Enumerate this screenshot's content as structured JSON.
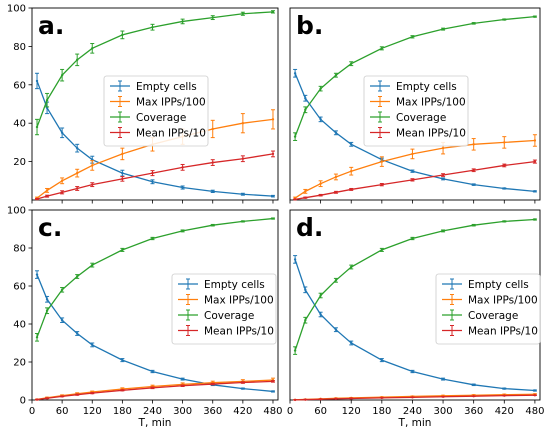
{
  "chart_data": [
    {
      "type": "line",
      "panel": "a.",
      "xlabel": "",
      "ylabel": "",
      "xlim": [
        0,
        490
      ],
      "ylim": [
        0,
        100
      ],
      "xticks": [
        0,
        60,
        120,
        180,
        240,
        300,
        360,
        420,
        480
      ],
      "xtick_labels": [
        "",
        "",
        "",
        "",
        "",
        "",
        "",
        "",
        ""
      ],
      "yticks": [
        20,
        40,
        60,
        80,
        100
      ],
      "legend": "center-right",
      "x": [
        10,
        30,
        60,
        90,
        120,
        180,
        240,
        300,
        360,
        420,
        480
      ],
      "series": [
        {
          "name": "Empty cells",
          "color": "#1f77b4",
          "values": [
            62,
            48,
            35,
            27,
            21,
            14,
            9.5,
            6.5,
            4.5,
            3,
            2
          ],
          "errors": [
            4,
            3,
            2.5,
            2,
            1.8,
            1.5,
            1,
            0.8,
            0.6,
            0.5,
            0.4
          ]
        },
        {
          "name": "Max IPPs/100",
          "color": "#ff7f0e",
          "values": [
            1,
            5,
            10,
            14,
            18,
            24,
            29,
            33,
            37,
            40,
            42
          ],
          "errors": [
            0.5,
            1,
            1.5,
            2,
            2.5,
            3,
            3.5,
            4,
            4.5,
            5,
            5
          ]
        },
        {
          "name": "Coverage",
          "color": "#2ca02c",
          "values": [
            38,
            52,
            65,
            73,
            79,
            86,
            90,
            93,
            95,
            97,
            98
          ],
          "errors": [
            4,
            3.5,
            3,
            3,
            2.5,
            2,
            1.5,
            1.2,
            1,
            0.8,
            0.6
          ]
        },
        {
          "name": "Mean IPPs/10",
          "color": "#d62728",
          "values": [
            0.5,
            2,
            4,
            6,
            8,
            11,
            14,
            17,
            19.5,
            21.5,
            24
          ],
          "errors": [
            0.3,
            0.5,
            0.8,
            1,
            1,
            1.2,
            1.3,
            1.5,
            1.5,
            1.5,
            1.5
          ]
        }
      ]
    },
    {
      "type": "line",
      "panel": "b.",
      "xlabel": "",
      "ylabel": "",
      "xlim": [
        0,
        490
      ],
      "ylim": [
        0,
        100
      ],
      "xticks": [
        0,
        60,
        120,
        180,
        240,
        300,
        360,
        420,
        480
      ],
      "xtick_labels": [
        "",
        "",
        "",
        "",
        "",
        "",
        "",
        "",
        ""
      ],
      "yticks": [],
      "legend": "center-right",
      "x": [
        10,
        30,
        60,
        90,
        120,
        180,
        240,
        300,
        360,
        420,
        480
      ],
      "series": [
        {
          "name": "Empty cells",
          "color": "#1f77b4",
          "values": [
            66,
            53,
            42,
            35,
            29,
            21,
            15,
            11,
            8,
            6,
            4.5
          ],
          "errors": [
            2,
            1.5,
            1.2,
            1,
            1,
            0.8,
            0.6,
            0.5,
            0.4,
            0.3,
            0.3
          ]
        },
        {
          "name": "Max IPPs/100",
          "color": "#ff7f0e",
          "values": [
            1,
            4.5,
            8.5,
            12,
            15,
            20,
            24,
            27,
            29,
            30,
            31
          ],
          "errors": [
            0.5,
            1,
            1.5,
            1.5,
            2,
            2.5,
            2.5,
            3,
            3,
            3,
            3
          ]
        },
        {
          "name": "Coverage",
          "color": "#2ca02c",
          "values": [
            33,
            47,
            58,
            65,
            71,
            79,
            85,
            89,
            92,
            94,
            95.5
          ],
          "errors": [
            2,
            1.5,
            1.2,
            1,
            1,
            0.8,
            0.6,
            0.5,
            0.4,
            0.3,
            0.3
          ]
        },
        {
          "name": "Mean IPPs/10",
          "color": "#d62728",
          "values": [
            0.3,
            1.2,
            2.5,
            4,
            5.5,
            8,
            10.5,
            13,
            15.5,
            18,
            20
          ],
          "errors": [
            0.2,
            0.3,
            0.4,
            0.5,
            0.5,
            0.6,
            0.6,
            0.7,
            0.7,
            0.7,
            0.8
          ]
        }
      ]
    },
    {
      "type": "line",
      "panel": "c.",
      "xlabel": "T, min",
      "ylabel": "",
      "xlim": [
        0,
        490
      ],
      "ylim": [
        0,
        100
      ],
      "xticks": [
        0,
        60,
        120,
        180,
        240,
        300,
        360,
        420,
        480
      ],
      "xtick_labels": [
        "0",
        "60",
        "120",
        "180",
        "240",
        "300",
        "360",
        "420",
        "480"
      ],
      "yticks": [
        0,
        20,
        40,
        60,
        80,
        100
      ],
      "legend": "center-right",
      "x": [
        10,
        30,
        60,
        90,
        120,
        180,
        240,
        300,
        360,
        420,
        480
      ],
      "series": [
        {
          "name": "Empty cells",
          "color": "#1f77b4",
          "values": [
            66,
            53,
            42,
            35,
            29,
            21,
            15,
            11,
            8,
            6,
            4.5
          ],
          "errors": [
            2,
            1.5,
            1.2,
            1,
            1,
            0.8,
            0.6,
            0.5,
            0.4,
            0.3,
            0.3
          ]
        },
        {
          "name": "Max IPPs/100",
          "color": "#ff7f0e",
          "values": [
            0.3,
            1.2,
            2.3,
            3.3,
            4.2,
            5.8,
            7.1,
            8.2,
            9.1,
            9.8,
            10.5
          ],
          "errors": [
            0.2,
            0.3,
            0.4,
            0.5,
            0.5,
            0.6,
            0.7,
            0.8,
            0.8,
            0.9,
            1
          ]
        },
        {
          "name": "Coverage",
          "color": "#2ca02c",
          "values": [
            33,
            47,
            58,
            65,
            71,
            79,
            85,
            89,
            92,
            94,
            95.5
          ],
          "errors": [
            2,
            1.5,
            1.2,
            1,
            1,
            0.8,
            0.6,
            0.5,
            0.4,
            0.3,
            0.3
          ]
        },
        {
          "name": "Mean IPPs/10",
          "color": "#d62728",
          "values": [
            0.2,
            0.9,
            1.9,
            2.8,
            3.6,
            5.1,
            6.4,
            7.5,
            8.4,
            9.2,
            9.8
          ],
          "errors": [
            0.1,
            0.2,
            0.2,
            0.3,
            0.3,
            0.3,
            0.4,
            0.4,
            0.4,
            0.4,
            0.4
          ]
        }
      ]
    },
    {
      "type": "line",
      "panel": "d.",
      "xlabel": "T, min",
      "ylabel": "",
      "xlim": [
        0,
        490
      ],
      "ylim": [
        0,
        100
      ],
      "xticks": [
        0,
        60,
        120,
        180,
        240,
        300,
        360,
        420,
        480
      ],
      "xtick_labels": [
        "0",
        "60",
        "120",
        "180",
        "240",
        "300",
        "360",
        "420",
        "480"
      ],
      "yticks": [],
      "legend": "center-right",
      "x": [
        10,
        30,
        60,
        90,
        120,
        180,
        240,
        300,
        360,
        420,
        480
      ],
      "series": [
        {
          "name": "Empty cells",
          "color": "#1f77b4",
          "values": [
            74,
            58,
            45,
            37,
            30,
            21,
            15,
            11,
            8,
            6,
            5
          ],
          "errors": [
            2,
            1.5,
            1.2,
            1,
            1,
            0.8,
            0.6,
            0.5,
            0.4,
            0.3,
            0.3
          ]
        },
        {
          "name": "Max IPPs/100",
          "color": "#ff7f0e",
          "values": [
            0.1,
            0.3,
            0.6,
            0.9,
            1.1,
            1.5,
            1.9,
            2.2,
            2.5,
            2.8,
            3
          ],
          "errors": [
            0.1,
            0.1,
            0.1,
            0.2,
            0.2,
            0.2,
            0.2,
            0.3,
            0.3,
            0.3,
            0.3
          ]
        },
        {
          "name": "Coverage",
          "color": "#2ca02c",
          "values": [
            26,
            42,
            55,
            63,
            70,
            79,
            85,
            89,
            92,
            94,
            95
          ],
          "errors": [
            2,
            1.5,
            1.2,
            1,
            1,
            0.8,
            0.6,
            0.5,
            0.4,
            0.3,
            0.3
          ]
        },
        {
          "name": "Mean IPPs/10",
          "color": "#d62728",
          "values": [
            0.05,
            0.2,
            0.4,
            0.6,
            0.8,
            1.1,
            1.4,
            1.7,
            2,
            2.3,
            2.5
          ],
          "errors": [
            0.05,
            0.1,
            0.1,
            0.1,
            0.1,
            0.1,
            0.1,
            0.1,
            0.1,
            0.1,
            0.1
          ]
        }
      ]
    }
  ]
}
